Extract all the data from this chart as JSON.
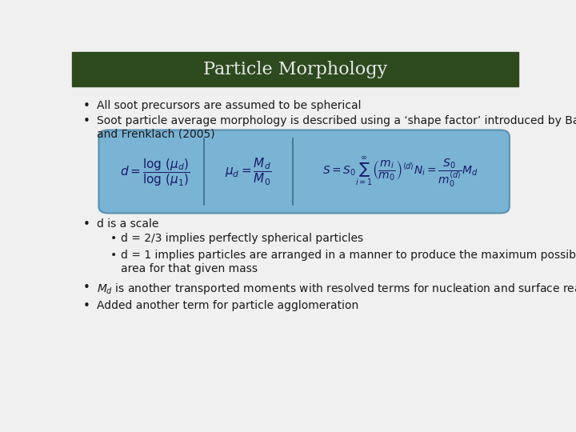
{
  "title": "Particle Morphology",
  "title_bg_color": "#2d4a1e",
  "title_text_color": "#e8e8e8",
  "slide_bg_color": "#f0f0f0",
  "bullet_color": "#1a1a1a",
  "bullet1": "All soot precursors are assumed to be spherical",
  "bullet2_part1": "Soot particle average morphology is described using a ‘shape factor’ introduced by Balthasar",
  "bullet2_part2": "and Frenklach (2005)",
  "eq_box_color": "#7ab4d4",
  "eq_box_edge_color": "#5a90b0",
  "eq1": "$d = \\dfrac{\\log\\,(\\mu_d)}{\\log\\,(\\mu_1)}$",
  "eq2": "$\\mu_d = \\dfrac{M_d}{M_0}$",
  "eq3": "$S = S_0 \\sum_{i=1}^{\\infty} \\left(\\dfrac{m_i}{m_0}\\right)^{\\langle d \\rangle} N_i = \\dfrac{S_0}{m_0^{\\langle d \\rangle}} M_d$",
  "bullet3": "d is a scale",
  "sub_bullet1": "d = 2/3 implies perfectly spherical particles",
  "sub_bullet2_part1": "d = 1 implies particles are arranged in a manner to produce the maximum possible surface",
  "sub_bullet2_part2": "area for that given mass",
  "bullet4_part1": "$M_d$ is another transported moments with resolved terms for nucleation and surface reactions,",
  "bullet5": "Added another term for particle agglomeration",
  "font_size": 10,
  "title_font_size": 16
}
